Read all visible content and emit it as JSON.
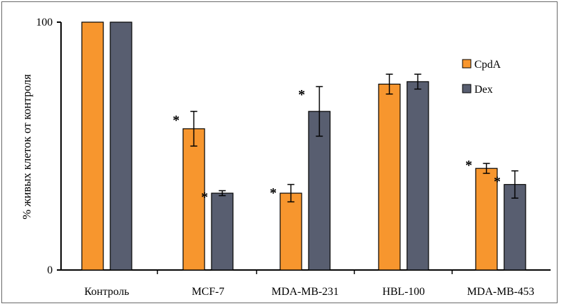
{
  "chart_data": {
    "type": "bar",
    "title": "",
    "xlabel": "",
    "ylabel": "% живых клеток от контроля",
    "ylim": [
      0,
      100
    ],
    "yticks": [
      "0",
      "100"
    ],
    "categories": [
      "Контроль",
      "MCF-7",
      "MDA-MB-231",
      "HBL-100",
      "MDA-MB-453"
    ],
    "series": [
      {
        "name": "CpdA",
        "color": "#F7962E",
        "values": [
          100,
          57,
          31,
          75,
          41
        ],
        "errors": [
          0,
          7,
          3.5,
          4,
          2
        ],
        "significant": [
          false,
          true,
          true,
          false,
          true
        ]
      },
      {
        "name": "Dex",
        "color": "#585E70",
        "values": [
          100,
          31,
          64,
          76,
          34.5
        ],
        "errors": [
          0,
          1,
          10,
          3,
          5.5
        ],
        "significant": [
          false,
          true,
          true,
          false,
          true
        ]
      }
    ],
    "significance_marker": "*",
    "legend_position": "right"
  }
}
